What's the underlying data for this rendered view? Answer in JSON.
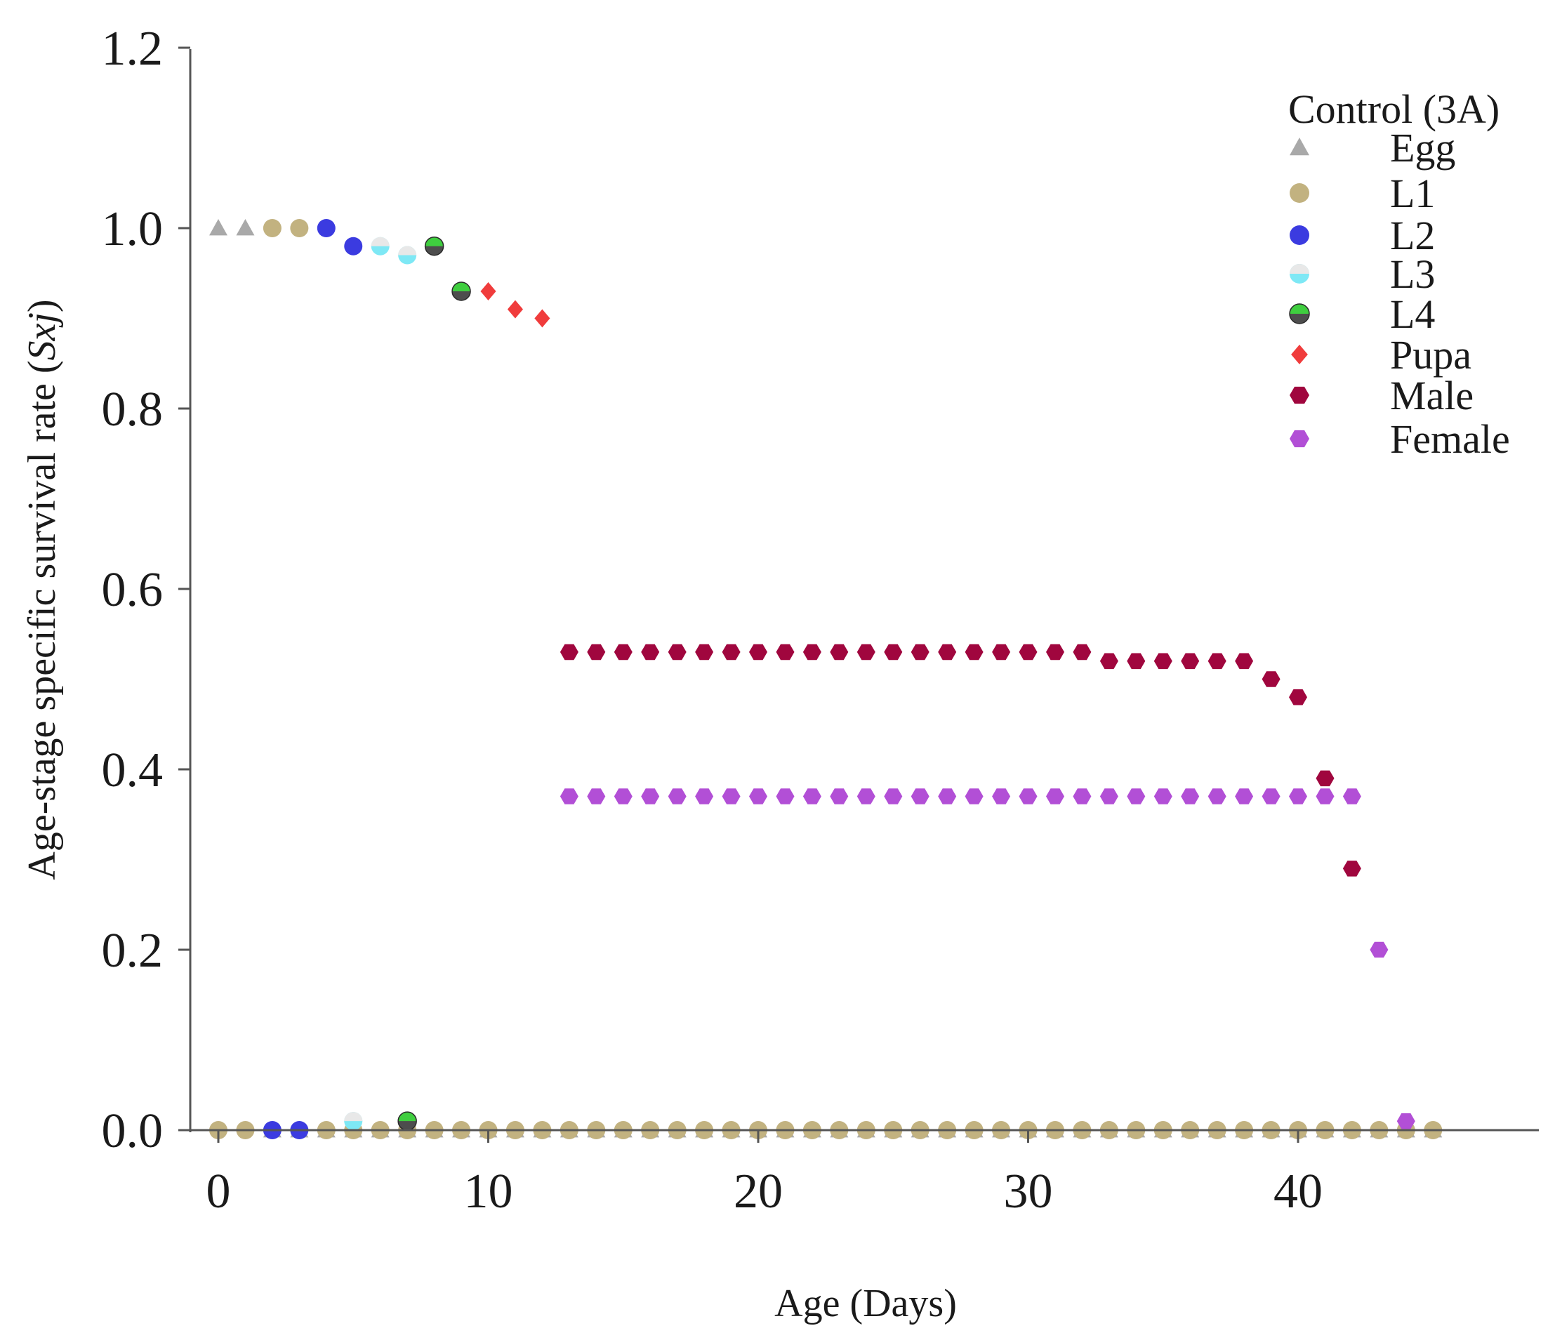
{
  "chart_data": {
    "type": "scatter",
    "xlabel": "Age (Days)",
    "ylabel_main": "Age-stage specific survival rate (",
    "ylabel_italic": "Sxj",
    "ylabel_close": ")",
    "xlim": [
      -1,
      49
    ],
    "ylim": [
      0,
      1.2
    ],
    "x_ticks": [
      0,
      10,
      20,
      30,
      40
    ],
    "x_tick_labels": [
      "0",
      "10",
      "20",
      "30",
      "40"
    ],
    "y_ticks": [
      0,
      0.2,
      0.4,
      0.6,
      0.8,
      1.0,
      1.2
    ],
    "y_tick_labels": [
      "0.0",
      "0.2",
      "0.4",
      "0.6",
      "0.8",
      "1.0",
      "1.2"
    ],
    "legend": {
      "title": "Control (3A)",
      "position": "top-right"
    },
    "series": [
      {
        "name": "Egg",
        "marker": "triangle",
        "color": "#a9a9a9",
        "points": [
          [
            0,
            1.0
          ],
          [
            1,
            1.0
          ],
          [
            2,
            0
          ],
          [
            3,
            0
          ],
          [
            4,
            0
          ],
          [
            5,
            0
          ],
          [
            6,
            0
          ],
          [
            7,
            0
          ],
          [
            8,
            0
          ],
          [
            9,
            0
          ],
          [
            10,
            0
          ],
          [
            11,
            0
          ],
          [
            12,
            0
          ],
          [
            13,
            0
          ],
          [
            14,
            0
          ],
          [
            15,
            0
          ],
          [
            16,
            0
          ],
          [
            17,
            0
          ],
          [
            18,
            0
          ],
          [
            19,
            0
          ],
          [
            20,
            0
          ],
          [
            21,
            0
          ],
          [
            22,
            0
          ],
          [
            23,
            0
          ],
          [
            24,
            0
          ],
          [
            25,
            0
          ],
          [
            26,
            0
          ],
          [
            27,
            0
          ],
          [
            28,
            0
          ],
          [
            29,
            0
          ],
          [
            30,
            0
          ],
          [
            31,
            0
          ],
          [
            32,
            0
          ],
          [
            33,
            0
          ],
          [
            34,
            0
          ],
          [
            35,
            0
          ],
          [
            36,
            0
          ],
          [
            37,
            0
          ],
          [
            38,
            0
          ],
          [
            39,
            0
          ],
          [
            40,
            0
          ],
          [
            41,
            0
          ],
          [
            42,
            0
          ],
          [
            43,
            0
          ],
          [
            44,
            0
          ],
          [
            45,
            0
          ]
        ]
      },
      {
        "name": "L1",
        "marker": "circle",
        "color": "#c2b280",
        "points": [
          [
            0,
            0
          ],
          [
            1,
            0
          ],
          [
            2,
            1.0
          ],
          [
            3,
            1.0
          ],
          [
            4,
            0
          ],
          [
            5,
            0
          ],
          [
            6,
            0
          ],
          [
            7,
            0
          ],
          [
            8,
            0
          ],
          [
            9,
            0
          ],
          [
            10,
            0
          ],
          [
            11,
            0
          ],
          [
            12,
            0
          ],
          [
            13,
            0
          ],
          [
            14,
            0
          ],
          [
            15,
            0
          ],
          [
            16,
            0
          ],
          [
            17,
            0
          ],
          [
            18,
            0
          ],
          [
            19,
            0
          ],
          [
            20,
            0
          ],
          [
            21,
            0
          ],
          [
            22,
            0
          ],
          [
            23,
            0
          ],
          [
            24,
            0
          ],
          [
            25,
            0
          ],
          [
            26,
            0
          ],
          [
            27,
            0
          ],
          [
            28,
            0
          ],
          [
            29,
            0
          ],
          [
            30,
            0
          ],
          [
            31,
            0
          ],
          [
            32,
            0
          ],
          [
            33,
            0
          ],
          [
            34,
            0
          ],
          [
            35,
            0
          ],
          [
            36,
            0
          ],
          [
            37,
            0
          ],
          [
            38,
            0
          ],
          [
            39,
            0
          ],
          [
            40,
            0
          ],
          [
            41,
            0
          ],
          [
            42,
            0
          ],
          [
            43,
            0
          ],
          [
            44,
            0
          ],
          [
            45,
            0
          ]
        ]
      },
      {
        "name": "L2",
        "marker": "circle",
        "color": "#3b3be0",
        "points": [
          [
            2,
            0
          ],
          [
            3,
            0
          ],
          [
            4,
            1.0
          ],
          [
            5,
            0.98
          ]
        ]
      },
      {
        "name": "L3",
        "marker": "circle-cyan",
        "color": "#7ee8f5",
        "points": [
          [
            5,
            0.01
          ],
          [
            6,
            0.98
          ],
          [
            7,
            0.97
          ]
        ]
      },
      {
        "name": "L4",
        "marker": "circle-half",
        "color": "#4d4d4d",
        "color_top": "#3fce3f",
        "points": [
          [
            7,
            0.01
          ],
          [
            8,
            0.98
          ],
          [
            9,
            0.93
          ]
        ]
      },
      {
        "name": "Pupa",
        "marker": "diamond",
        "color": "#f03c3c",
        "points": [
          [
            10,
            0.93
          ],
          [
            11,
            0.91
          ],
          [
            12,
            0.9
          ]
        ]
      },
      {
        "name": "Male",
        "marker": "hexagon",
        "color": "#a0063e",
        "points": [
          [
            13,
            0.53
          ],
          [
            14,
            0.53
          ],
          [
            15,
            0.53
          ],
          [
            16,
            0.53
          ],
          [
            17,
            0.53
          ],
          [
            18,
            0.53
          ],
          [
            19,
            0.53
          ],
          [
            20,
            0.53
          ],
          [
            21,
            0.53
          ],
          [
            22,
            0.53
          ],
          [
            23,
            0.53
          ],
          [
            24,
            0.53
          ],
          [
            25,
            0.53
          ],
          [
            26,
            0.53
          ],
          [
            27,
            0.53
          ],
          [
            28,
            0.53
          ],
          [
            29,
            0.53
          ],
          [
            30,
            0.53
          ],
          [
            31,
            0.53
          ],
          [
            32,
            0.53
          ],
          [
            33,
            0.52
          ],
          [
            34,
            0.52
          ],
          [
            35,
            0.52
          ],
          [
            36,
            0.52
          ],
          [
            37,
            0.52
          ],
          [
            38,
            0.52
          ],
          [
            39,
            0.5
          ],
          [
            40,
            0.48
          ],
          [
            41,
            0.39
          ],
          [
            42,
            0.29
          ]
        ]
      },
      {
        "name": "Female",
        "marker": "hexagon",
        "color": "#b24fd6",
        "points": [
          [
            13,
            0.37
          ],
          [
            14,
            0.37
          ],
          [
            15,
            0.37
          ],
          [
            16,
            0.37
          ],
          [
            17,
            0.37
          ],
          [
            18,
            0.37
          ],
          [
            19,
            0.37
          ],
          [
            20,
            0.37
          ],
          [
            21,
            0.37
          ],
          [
            22,
            0.37
          ],
          [
            23,
            0.37
          ],
          [
            24,
            0.37
          ],
          [
            25,
            0.37
          ],
          [
            26,
            0.37
          ],
          [
            27,
            0.37
          ],
          [
            28,
            0.37
          ],
          [
            29,
            0.37
          ],
          [
            30,
            0.37
          ],
          [
            31,
            0.37
          ],
          [
            32,
            0.37
          ],
          [
            33,
            0.37
          ],
          [
            34,
            0.37
          ],
          [
            35,
            0.37
          ],
          [
            36,
            0.37
          ],
          [
            37,
            0.37
          ],
          [
            38,
            0.37
          ],
          [
            39,
            0.37
          ],
          [
            40,
            0.37
          ],
          [
            41,
            0.37
          ],
          [
            42,
            0.37
          ],
          [
            43,
            0.2
          ],
          [
            44,
            0.01
          ]
        ]
      }
    ]
  }
}
